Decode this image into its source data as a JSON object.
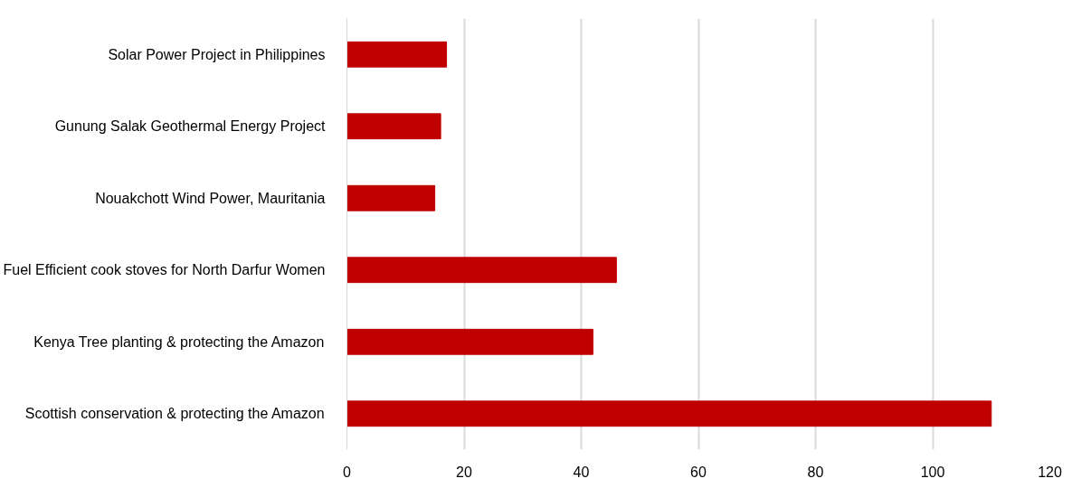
{
  "chart_data": {
    "type": "bar",
    "orientation": "horizontal",
    "categories": [
      "Solar Power Project in Philippines",
      "Gunung Salak Geothermal Energy Project",
      "Nouakchott Wind Power, Mauritania",
      "Fuel Efficient cook stoves for North Darfur Women",
      "Kenya Tree planting & protecting the Amazon",
      "Scottish conservation & protecting the Amazon"
    ],
    "values": [
      17,
      16,
      15,
      46,
      42,
      110
    ],
    "color": "#c00000",
    "xlim": [
      0,
      120
    ],
    "xticks": [
      0,
      20,
      40,
      60,
      80,
      100,
      120
    ],
    "grid": "x"
  }
}
